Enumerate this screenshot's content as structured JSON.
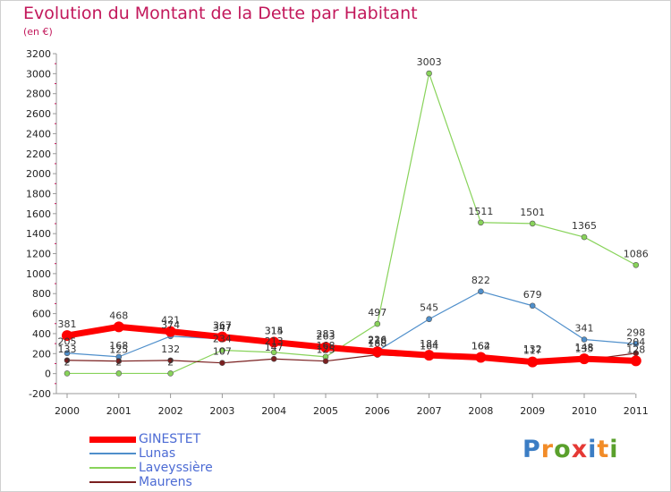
{
  "header": {
    "title": "Evolution du Montant de la Dette par Habitant",
    "unit": "(en €)"
  },
  "logo": {
    "letters": [
      "P",
      "r",
      "o",
      "x",
      "i",
      "t",
      "i"
    ],
    "colors": [
      "#3b7dc4",
      "#f28c28",
      "#5aa02c",
      "#e53935",
      "#3b7dc4",
      "#f28c28",
      "#5aa02c"
    ]
  },
  "chart_data": {
    "type": "line",
    "title": "Evolution du Montant de la Dette par Habitant",
    "ylabel": "(en €)",
    "xlabel": "",
    "x": [
      "2000",
      "2001",
      "2002",
      "2003",
      "2004",
      "2005",
      "2006",
      "2007",
      "2008",
      "2009",
      "2010",
      "2011"
    ],
    "ylim": [
      -200,
      3200
    ],
    "yticks": [
      -200,
      0,
      200,
      400,
      600,
      800,
      1000,
      1200,
      1400,
      1600,
      1800,
      2000,
      2200,
      2400,
      2600,
      2800,
      3000,
      3200
    ],
    "grid": false,
    "legend": "bottom-left",
    "series": [
      {
        "name": "Lunas",
        "color": "#4f8fcb",
        "width": 1.2,
        "values": [
          205,
          168,
          374,
          347,
          315,
          283,
          226,
          545,
          822,
          679,
          341,
          298
        ],
        "labels": [
          "205",
          "168",
          "374",
          "347",
          "315",
          "283",
          "226",
          "545",
          "822",
          "679",
          "341",
          "298"
        ]
      },
      {
        "name": "Laveyssière",
        "color": "#88d35a",
        "width": 1.2,
        "values": [
          2,
          2,
          2,
          234,
          213,
          168,
          497,
          3003,
          1511,
          1501,
          1365,
          1086
        ],
        "labels": [
          "2",
          "2",
          "2",
          "234",
          "213",
          "168",
          "497",
          "3003",
          "1511",
          "1501",
          "1365",
          "1086"
        ]
      },
      {
        "name": "Maurens",
        "color": "#7a1f1f",
        "width": 1.2,
        "values": [
          133,
          125,
          132,
          107,
          147,
          125,
          188,
          164,
          164,
          132,
          135,
          204
        ],
        "labels": [
          "133",
          "125",
          "132",
          "107",
          "147",
          "125",
          "188",
          "164",
          "164",
          "132",
          "135",
          "204"
        ]
      },
      {
        "name": "GINESTET",
        "color": "#ff0000",
        "width": 7,
        "values": [
          381,
          468,
          421,
          367,
          314,
          263,
          218,
          184,
          162,
          117,
          148,
          128
        ],
        "labels": [
          "381",
          "468",
          "421",
          "367",
          "314",
          "263",
          "218",
          "184",
          "162",
          "117",
          "148",
          "128"
        ]
      }
    ],
    "legend_entries": [
      {
        "name": "GINESTET",
        "color": "#ff0000",
        "thickness": 7,
        "text_color": "#4c6bd4"
      },
      {
        "name": "Lunas",
        "color": "#4f8fcb",
        "thickness": 2,
        "text_color": "#4c6bd4"
      },
      {
        "name": "Laveyssière",
        "color": "#88d35a",
        "thickness": 2,
        "text_color": "#4c6bd4"
      },
      {
        "name": "Maurens",
        "color": "#7a1f1f",
        "thickness": 2,
        "text_color": "#4c6bd4"
      }
    ]
  }
}
